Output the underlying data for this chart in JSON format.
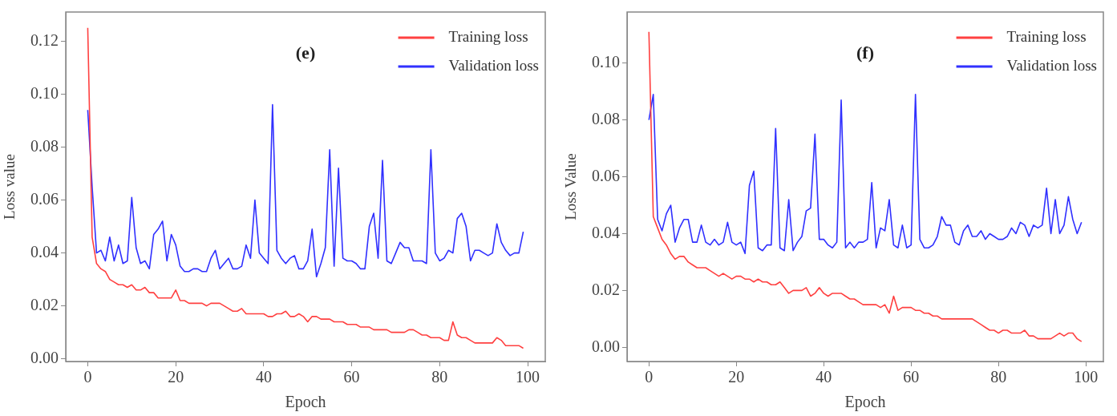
{
  "chart_data": [
    {
      "type": "line",
      "title": "(e)",
      "xlabel": "Epoch",
      "ylabel": "Loss value",
      "legend": "top right",
      "grid": false,
      "marker": "none",
      "line_style": "solid",
      "xlim": [
        -5,
        104
      ],
      "xticks": [
        0,
        20,
        40,
        60,
        80,
        100
      ],
      "ylim": [
        -0.001,
        0.131
      ],
      "yticks": [
        {
          "value": 0,
          "label": "0.00"
        },
        {
          "value": 0.02,
          "label": "0.02"
        },
        {
          "value": 0.04,
          "label": "0.04"
        },
        {
          "value": 0.06,
          "label": "0.06"
        },
        {
          "value": 0.08,
          "label": "0.08"
        },
        {
          "value": 0.1,
          "label": "0.10"
        },
        {
          "value": 0.12,
          "label": "0.12"
        }
      ],
      "x": [
        0,
        1,
        2,
        3,
        4,
        5,
        6,
        7,
        8,
        9,
        10,
        11,
        12,
        13,
        14,
        15,
        16,
        17,
        18,
        19,
        20,
        21,
        22,
        23,
        24,
        25,
        26,
        27,
        28,
        29,
        30,
        31,
        32,
        33,
        34,
        35,
        36,
        37,
        38,
        39,
        40,
        41,
        42,
        43,
        44,
        45,
        46,
        47,
        48,
        49,
        50,
        51,
        52,
        53,
        54,
        55,
        56,
        57,
        58,
        59,
        60,
        61,
        62,
        63,
        64,
        65,
        66,
        67,
        68,
        69,
        70,
        71,
        72,
        73,
        74,
        75,
        76,
        77,
        78,
        79,
        80,
        81,
        82,
        83,
        84,
        85,
        86,
        87,
        88,
        89,
        90,
        91,
        92,
        93,
        94,
        95,
        96,
        97,
        98,
        99
      ],
      "series": [
        {
          "name": "Training loss",
          "color": "#ff4040",
          "values": [
            0.125,
            0.046,
            0.036,
            0.034,
            0.033,
            0.03,
            0.029,
            0.028,
            0.028,
            0.027,
            0.028,
            0.026,
            0.026,
            0.027,
            0.025,
            0.025,
            0.023,
            0.023,
            0.023,
            0.023,
            0.026,
            0.022,
            0.022,
            0.021,
            0.021,
            0.021,
            0.021,
            0.02,
            0.021,
            0.021,
            0.021,
            0.02,
            0.019,
            0.018,
            0.018,
            0.019,
            0.017,
            0.017,
            0.017,
            0.017,
            0.017,
            0.016,
            0.016,
            0.017,
            0.017,
            0.018,
            0.016,
            0.016,
            0.017,
            0.016,
            0.014,
            0.016,
            0.016,
            0.015,
            0.015,
            0.015,
            0.014,
            0.014,
            0.014,
            0.013,
            0.013,
            0.013,
            0.012,
            0.012,
            0.012,
            0.011,
            0.011,
            0.011,
            0.011,
            0.01,
            0.01,
            0.01,
            0.01,
            0.011,
            0.011,
            0.01,
            0.009,
            0.009,
            0.008,
            0.008,
            0.008,
            0.007,
            0.007,
            0.014,
            0.009,
            0.008,
            0.008,
            0.007,
            0.006,
            0.006,
            0.006,
            0.006,
            0.006,
            0.008,
            0.007,
            0.005,
            0.005,
            0.005,
            0.005,
            0.004
          ]
        },
        {
          "name": "Validation loss",
          "color": "#3030ff",
          "values": [
            0.094,
            0.065,
            0.04,
            0.041,
            0.037,
            0.046,
            0.037,
            0.043,
            0.036,
            0.037,
            0.061,
            0.042,
            0.036,
            0.037,
            0.034,
            0.047,
            0.049,
            0.052,
            0.037,
            0.047,
            0.043,
            0.035,
            0.033,
            0.033,
            0.034,
            0.034,
            0.033,
            0.033,
            0.038,
            0.041,
            0.034,
            0.036,
            0.038,
            0.034,
            0.034,
            0.035,
            0.043,
            0.038,
            0.06,
            0.04,
            0.038,
            0.036,
            0.096,
            0.041,
            0.038,
            0.036,
            0.038,
            0.039,
            0.034,
            0.034,
            0.037,
            0.049,
            0.031,
            0.036,
            0.042,
            0.079,
            0.035,
            0.072,
            0.038,
            0.037,
            0.037,
            0.036,
            0.034,
            0.034,
            0.05,
            0.055,
            0.038,
            0.075,
            0.037,
            0.036,
            0.04,
            0.044,
            0.042,
            0.042,
            0.037,
            0.037,
            0.037,
            0.036,
            0.079,
            0.04,
            0.037,
            0.038,
            0.041,
            0.04,
            0.053,
            0.055,
            0.05,
            0.037,
            0.041,
            0.041,
            0.04,
            0.039,
            0.04,
            0.051,
            0.044,
            0.041,
            0.039,
            0.04,
            0.04,
            0.048
          ]
        }
      ]
    },
    {
      "type": "line",
      "title": "(f)",
      "xlabel": "Epoch",
      "ylabel": "Loss Value",
      "legend": "top right",
      "grid": false,
      "marker": "none",
      "line_style": "solid",
      "xlim": [
        -5,
        104
      ],
      "xticks": [
        0,
        20,
        40,
        60,
        80,
        100
      ],
      "ylim": [
        -0.005,
        0.118
      ],
      "yticks": [
        {
          "value": 0,
          "label": "0.00"
        },
        {
          "value": 0.02,
          "label": "0.02"
        },
        {
          "value": 0.04,
          "label": "0.04"
        },
        {
          "value": 0.06,
          "label": "0.06"
        },
        {
          "value": 0.08,
          "label": "0.08"
        },
        {
          "value": 0.1,
          "label": "0.10"
        }
      ],
      "x": [
        0,
        1,
        2,
        3,
        4,
        5,
        6,
        7,
        8,
        9,
        10,
        11,
        12,
        13,
        14,
        15,
        16,
        17,
        18,
        19,
        20,
        21,
        22,
        23,
        24,
        25,
        26,
        27,
        28,
        29,
        30,
        31,
        32,
        33,
        34,
        35,
        36,
        37,
        38,
        39,
        40,
        41,
        42,
        43,
        44,
        45,
        46,
        47,
        48,
        49,
        50,
        51,
        52,
        53,
        54,
        55,
        56,
        57,
        58,
        59,
        60,
        61,
        62,
        63,
        64,
        65,
        66,
        67,
        68,
        69,
        70,
        71,
        72,
        73,
        74,
        75,
        76,
        77,
        78,
        79,
        80,
        81,
        82,
        83,
        84,
        85,
        86,
        87,
        88,
        89,
        90,
        91,
        92,
        93,
        94,
        95,
        96,
        97,
        98,
        99
      ],
      "series": [
        {
          "name": "Training loss",
          "color": "#ff4040",
          "values": [
            0.111,
            0.046,
            0.042,
            0.038,
            0.036,
            0.033,
            0.031,
            0.032,
            0.032,
            0.03,
            0.029,
            0.028,
            0.028,
            0.028,
            0.027,
            0.026,
            0.025,
            0.026,
            0.025,
            0.024,
            0.025,
            0.025,
            0.024,
            0.024,
            0.023,
            0.024,
            0.023,
            0.023,
            0.022,
            0.022,
            0.023,
            0.021,
            0.019,
            0.02,
            0.02,
            0.02,
            0.021,
            0.018,
            0.019,
            0.021,
            0.019,
            0.018,
            0.019,
            0.019,
            0.019,
            0.018,
            0.017,
            0.017,
            0.016,
            0.015,
            0.015,
            0.015,
            0.015,
            0.014,
            0.015,
            0.012,
            0.018,
            0.013,
            0.014,
            0.014,
            0.014,
            0.013,
            0.013,
            0.012,
            0.012,
            0.011,
            0.011,
            0.01,
            0.01,
            0.01,
            0.01,
            0.01,
            0.01,
            0.01,
            0.01,
            0.009,
            0.008,
            0.007,
            0.006,
            0.006,
            0.005,
            0.006,
            0.006,
            0.005,
            0.005,
            0.005,
            0.006,
            0.004,
            0.004,
            0.003,
            0.003,
            0.003,
            0.003,
            0.004,
            0.005,
            0.004,
            0.005,
            0.005,
            0.003,
            0.002
          ]
        },
        {
          "name": "Validation loss",
          "color": "#3030ff",
          "values": [
            0.08,
            0.089,
            0.045,
            0.041,
            0.047,
            0.05,
            0.037,
            0.042,
            0.045,
            0.045,
            0.037,
            0.037,
            0.043,
            0.037,
            0.036,
            0.038,
            0.036,
            0.037,
            0.044,
            0.037,
            0.036,
            0.037,
            0.033,
            0.057,
            0.062,
            0.035,
            0.034,
            0.036,
            0.036,
            0.077,
            0.035,
            0.034,
            0.052,
            0.034,
            0.037,
            0.039,
            0.048,
            0.049,
            0.075,
            0.038,
            0.038,
            0.036,
            0.035,
            0.037,
            0.087,
            0.035,
            0.037,
            0.035,
            0.037,
            0.037,
            0.038,
            0.058,
            0.035,
            0.042,
            0.041,
            0.052,
            0.036,
            0.035,
            0.043,
            0.035,
            0.036,
            0.089,
            0.038,
            0.035,
            0.035,
            0.036,
            0.039,
            0.046,
            0.043,
            0.043,
            0.037,
            0.036,
            0.041,
            0.043,
            0.039,
            0.039,
            0.041,
            0.038,
            0.04,
            0.039,
            0.038,
            0.038,
            0.039,
            0.042,
            0.04,
            0.044,
            0.043,
            0.039,
            0.043,
            0.042,
            0.043,
            0.056,
            0.04,
            0.052,
            0.04,
            0.043,
            0.053,
            0.045,
            0.04,
            0.044
          ]
        }
      ]
    }
  ]
}
